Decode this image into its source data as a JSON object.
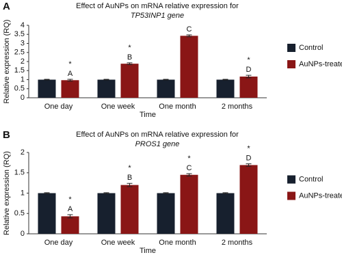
{
  "chart_data": [
    {
      "type": "bar",
      "panel": "A",
      "title": "Effect of AuNPs on mRNA relative expression for",
      "subtitle": "TP53INP1 gene",
      "y_label": "Relative expression (RQ)",
      "x_label": "Time",
      "categories": [
        "One day",
        "One week",
        "One month",
        "2 months"
      ],
      "series": [
        {
          "name": "Control",
          "color": "#17202e",
          "values": [
            1,
            1,
            1,
            1
          ],
          "errors": [
            0.02,
            0.02,
            0.02,
            0.02
          ]
        },
        {
          "name": "AuNPs-treated",
          "color": "#8a1616",
          "values": [
            0.97,
            1.88,
            3.42,
            1.17
          ],
          "errors": [
            0.05,
            0.05,
            0.05,
            0.07
          ]
        }
      ],
      "stars": [
        "*",
        "*",
        null,
        "*"
      ],
      "letters": [
        "A",
        "B",
        "C",
        "D"
      ],
      "ylim": [
        0,
        4
      ],
      "yticks": [
        0,
        0.5,
        1,
        1.5,
        2,
        2.5,
        3,
        3.5,
        4
      ],
      "legend": "right"
    },
    {
      "type": "bar",
      "panel": "B",
      "title": "Effect of AuNPs on mRNA relative expression for",
      "subtitle": "PROS1 gene",
      "y_label": "Relative expression (RQ)",
      "x_label": "Time",
      "categories": [
        "One day",
        "One week",
        "One month",
        "2 months"
      ],
      "series": [
        {
          "name": "Control",
          "color": "#17202e",
          "values": [
            1,
            1,
            1,
            1
          ],
          "errors": [
            0.01,
            0.01,
            0.01,
            0.01
          ]
        },
        {
          "name": "AuNPs-treated",
          "color": "#8a1616",
          "values": [
            0.43,
            1.2,
            1.45,
            1.69
          ],
          "errors": [
            0.04,
            0.04,
            0.03,
            0.03
          ]
        }
      ],
      "stars": [
        "*",
        "*",
        "*",
        "*"
      ],
      "letters": [
        "A",
        "B",
        "C",
        "D"
      ],
      "ylim": [
        0,
        2
      ],
      "yticks": [
        0,
        0.5,
        1,
        1.5,
        2
      ],
      "legend": "right"
    }
  ]
}
